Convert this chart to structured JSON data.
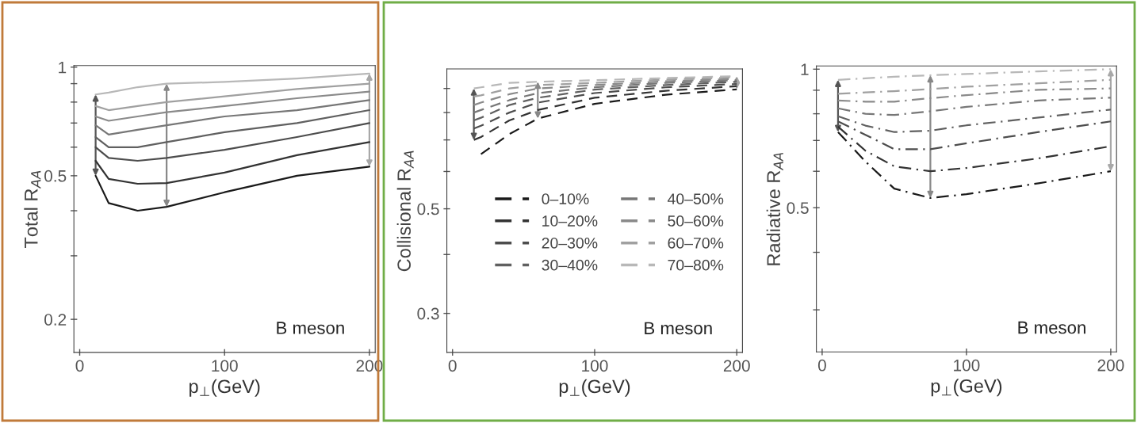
{
  "chart_data": [
    {
      "type": "line",
      "ylabel": "Total R$_{AA}$",
      "xlabel": "p$_{⊥}$(GeV)",
      "log": "y",
      "line_style": "solid",
      "grid": false,
      "legend": false,
      "x": [
        11,
        20,
        40,
        60,
        100,
        150,
        200
      ],
      "xlim": [
        -4,
        204
      ],
      "xticks": [
        0,
        100,
        200
      ],
      "ylim": [
        0.162,
        1.01
      ],
      "yticks": [
        1,
        {
          "value": 0.9,
          "label": null
        },
        {
          "value": 0.8,
          "label": null
        },
        {
          "value": 0.7,
          "label": null
        },
        {
          "value": 0.6,
          "label": null
        },
        0.5,
        {
          "value": 0.4,
          "label": null
        },
        {
          "value": 0.3,
          "label": null
        },
        0.2
      ],
      "annotations": [
        "B meson"
      ],
      "series": [
        {
          "color": "#1a1a1a",
          "values": [
            0.5,
            0.42,
            0.4,
            0.41,
            0.45,
            0.5,
            0.53
          ]
        },
        {
          "color": "#333333",
          "values": [
            0.55,
            0.49,
            0.475,
            0.477,
            0.51,
            0.57,
            0.62
          ]
        },
        {
          "color": "#4d4d4d",
          "values": [
            0.6,
            0.56,
            0.55,
            0.56,
            0.59,
            0.64,
            0.7
          ]
        },
        {
          "color": "#606060",
          "values": [
            0.64,
            0.6,
            0.6,
            0.62,
            0.66,
            0.7,
            0.76
          ]
        },
        {
          "color": "#777777",
          "values": [
            0.69,
            0.65,
            0.67,
            0.69,
            0.73,
            0.76,
            0.81
          ]
        },
        {
          "color": "#8a8a8a",
          "values": [
            0.73,
            0.71,
            0.73,
            0.75,
            0.78,
            0.82,
            0.855
          ]
        },
        {
          "color": "#a0a0a0",
          "values": [
            0.78,
            0.76,
            0.78,
            0.8,
            0.83,
            0.87,
            0.9
          ]
        },
        {
          "color": "#b8b8b8",
          "values": [
            0.84,
            0.85,
            0.88,
            0.9,
            0.91,
            0.93,
            0.96
          ]
        }
      ]
    },
    {
      "type": "line",
      "ylabel": "Collisional R$_{AA}$",
      "xlabel": "p$_{⊥}$(GeV)",
      "log": "y",
      "line_style": "dashed",
      "grid": false,
      "legend": "center",
      "x": [
        15,
        20,
        40,
        60,
        100,
        150,
        200
      ],
      "xlim": [
        -4,
        204
      ],
      "xticks": [
        0,
        100,
        200
      ],
      "ylim": [
        0.248,
        0.99
      ],
      "yticks": [
        {
          "value": 0.9,
          "label": null
        },
        {
          "value": 0.8,
          "label": null
        },
        {
          "value": 0.7,
          "label": null
        },
        {
          "value": 0.6,
          "label": null
        },
        0.5,
        {
          "value": 0.4,
          "label": null
        },
        0.3
      ],
      "annotations": [
        "B meson"
      ],
      "series": [
        {
          "name": "0–10%",
          "color": "#1a1a1a",
          "values": [
            null,
            0.653,
            0.72,
            0.777,
            0.835,
            0.873,
            0.896
          ]
        },
        {
          "name": "10–20%",
          "color": "#333333",
          "values": [
            0.7,
            0.71,
            0.77,
            0.81,
            0.86,
            0.89,
            0.91
          ]
        },
        {
          "name": "20–30%",
          "color": "#4d4d4d",
          "values": [
            0.74,
            0.75,
            0.8,
            0.84,
            0.88,
            0.905,
            0.92
          ]
        },
        {
          "name": "30–40%",
          "color": "#606060",
          "values": [
            0.77,
            0.78,
            0.83,
            0.86,
            0.895,
            0.915,
            0.93
          ]
        },
        {
          "name": "40–50%",
          "color": "#777777",
          "values": [
            0.8,
            0.81,
            0.85,
            0.88,
            0.905,
            0.925,
            0.937
          ]
        },
        {
          "name": "50–60%",
          "color": "#8a8a8a",
          "values": [
            0.83,
            0.84,
            0.875,
            0.9,
            0.915,
            0.932,
            0.943
          ]
        },
        {
          "name": "60–70%",
          "color": "#a0a0a0",
          "values": [
            0.865,
            0.87,
            0.9,
            0.915,
            0.925,
            0.94,
            0.95
          ]
        },
        {
          "name": "70–80%",
          "color": "#b8b8b8",
          "values": [
            0.9,
            0.905,
            0.925,
            0.93,
            0.937,
            0.947,
            0.956
          ]
        }
      ]
    },
    {
      "type": "line",
      "ylabel": "Radiative R$_{AA}$",
      "xlabel": "p$_{⊥}$(GeV)",
      "log": "y",
      "line_style": "dashdot",
      "grid": false,
      "legend": false,
      "x": [
        11,
        30,
        50,
        75,
        100,
        150,
        200
      ],
      "xlim": [
        -4,
        204
      ],
      "xticks": [
        0,
        100,
        200
      ],
      "ylim": [
        0.243,
        1.016
      ],
      "yticks": [
        1,
        {
          "value": 0.9,
          "label": null
        },
        {
          "value": 0.8,
          "label": null
        },
        {
          "value": 0.7,
          "label": null
        },
        {
          "value": 0.6,
          "label": null
        },
        0.5,
        {
          "value": 0.4,
          "label": null
        },
        {
          "value": 0.3,
          "label": null
        }
      ],
      "annotations": [
        "B meson"
      ],
      "series": [
        {
          "color": "#1a1a1a",
          "values": [
            0.73,
            0.63,
            0.55,
            0.525,
            0.535,
            0.565,
            0.6
          ]
        },
        {
          "color": "#333333",
          "values": [
            0.75,
            0.665,
            0.615,
            0.6,
            0.61,
            0.64,
            0.68
          ]
        },
        {
          "color": "#4d4d4d",
          "values": [
            0.77,
            0.72,
            0.67,
            0.67,
            0.69,
            0.73,
            0.77
          ]
        },
        {
          "color": "#606060",
          "values": [
            0.79,
            0.754,
            0.73,
            0.735,
            0.755,
            0.785,
            0.817
          ]
        },
        {
          "color": "#777777",
          "values": [
            0.822,
            0.8,
            0.795,
            0.81,
            0.828,
            0.855,
            0.867
          ]
        },
        {
          "color": "#8a8a8a",
          "values": [
            0.855,
            0.85,
            0.85,
            0.865,
            0.878,
            0.902,
            0.908
          ]
        },
        {
          "color": "#a0a0a0",
          "values": [
            0.884,
            0.89,
            0.896,
            0.905,
            0.916,
            0.932,
            0.948
          ]
        },
        {
          "color": "#b8b8b8",
          "values": [
            0.948,
            0.955,
            0.963,
            0.97,
            0.976,
            0.989,
            1.0
          ]
        }
      ]
    }
  ]
}
